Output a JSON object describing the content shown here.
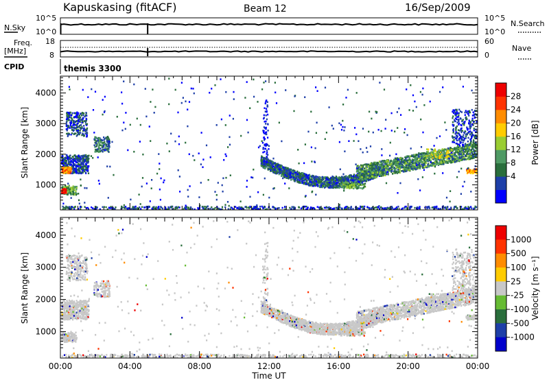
{
  "header": {
    "title": "Kapuskasing (fitACF)",
    "beam": "Beam 12",
    "date": "16/Sep/2009"
  },
  "top_panel": {
    "left_label": "N.Sky",
    "right_label": "N.Search",
    "left_ticks": [
      "10^5",
      "10^0"
    ],
    "right_ticks": [
      "10^5",
      "10^0"
    ]
  },
  "freq_panel": {
    "left_label_1": "Freq.",
    "left_label_2": "[MHz]",
    "left_ticks": [
      "18",
      "8"
    ],
    "right_label": "Nave",
    "right_ticks": [
      "60",
      "0"
    ],
    "cpid_label": "CPID",
    "cpid_value": "themis 3300"
  },
  "power_colorbar": {
    "label": "Power [dB]",
    "ticks": [
      "28",
      "24",
      "20",
      "16",
      "12",
      "8",
      "4"
    ],
    "colors": [
      "#0000ff",
      "#1e3fa8",
      "#2a6e3c",
      "#4f9a64",
      "#9acd32",
      "#ffcc00",
      "#ff8c00",
      "#ff3300",
      "#ee0000"
    ]
  },
  "velocity_colorbar": {
    "label": "Velocity [m s⁻¹]",
    "ticks": [
      "1000",
      "500",
      "100",
      "25",
      "-25",
      "-100",
      "-500",
      "-1000"
    ],
    "colors": [
      "#0000cc",
      "#1e3fa8",
      "#2a6e3c",
      "#66bb33",
      "#c8c8c8",
      "#ffcc00",
      "#ff8c00",
      "#ff3300",
      "#ee0000"
    ]
  },
  "chart_data": [
    {
      "type": "heatmap",
      "panel": "power",
      "ylabel": "Slant Range [km]",
      "ylim": [
        180,
        4550
      ],
      "yticks": [
        1000,
        2000,
        3000,
        4000
      ],
      "xlim": [
        0,
        24
      ],
      "echo_regions": [
        {
          "t_start": 0.0,
          "t_end": 1.6,
          "r_min": 1400,
          "r_max": 2000
        },
        {
          "t_start": 0.0,
          "t_end": 0.9,
          "r_min": 700,
          "r_max": 1000
        },
        {
          "t_start": 0.3,
          "t_end": 1.5,
          "r_min": 2600,
          "r_max": 3400
        },
        {
          "t_start": 1.9,
          "t_end": 2.8,
          "r_min": 2100,
          "r_max": 2600
        },
        {
          "t_start": 11.5,
          "t_end": 18.5,
          "r_min": 800,
          "r_max": 1800
        },
        {
          "t_start": 17.0,
          "t_end": 24.0,
          "r_min": 1300,
          "r_max": 2300
        },
        {
          "t_start": 22.5,
          "t_end": 24.0,
          "r_min": 2300,
          "r_max": 3500
        }
      ]
    },
    {
      "type": "heatmap",
      "panel": "velocity",
      "ylabel": "Slant Range [km]",
      "xlabel": "Time UT",
      "ylim": [
        180,
        4550
      ],
      "yticks": [
        1000,
        2000,
        3000,
        4000
      ],
      "xlim": [
        0,
        24
      ],
      "xticks": [
        "00:00",
        "04:00",
        "08:00",
        "12:00",
        "16:00",
        "20:00",
        "00:00"
      ]
    }
  ]
}
